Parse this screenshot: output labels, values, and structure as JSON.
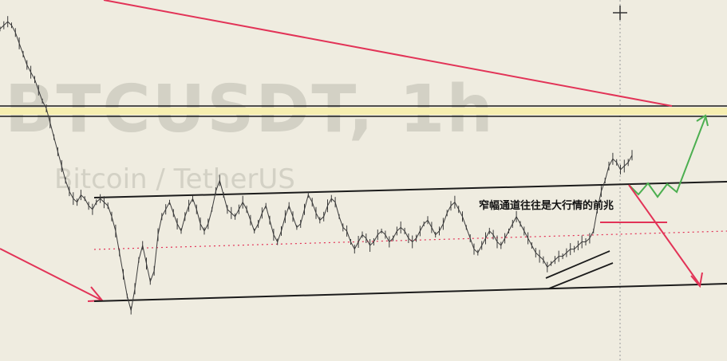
{
  "chart_data": {
    "type": "line",
    "title": "",
    "xlabel": "",
    "ylabel": "",
    "grid": false,
    "watermark": {
      "symbol": "BTCUSDT, 1h",
      "description": "Bitcoin / TetherUS"
    },
    "annotations": [
      {
        "text": "窄幅通道往往是大行情的前兆"
      }
    ],
    "series": [
      {
        "values": [
          92,
          93,
          94,
          93,
          91,
          88,
          85,
          82,
          80,
          78,
          75,
          72,
          70,
          66,
          62,
          58,
          54,
          50,
          47,
          45,
          44,
          46,
          45,
          43,
          42,
          44,
          45,
          44,
          43,
          40,
          36,
          30,
          24,
          18,
          14,
          20,
          28,
          32,
          27,
          22,
          25,
          35,
          40,
          42,
          44,
          41,
          38,
          36,
          40,
          43,
          45,
          42,
          38,
          36,
          38,
          42,
          47,
          50,
          46,
          42,
          41,
          40,
          42,
          44,
          42,
          39,
          36,
          38,
          41,
          43,
          39,
          35,
          33,
          36,
          40,
          43,
          40,
          37,
          38,
          42,
          46,
          44,
          41,
          39,
          40,
          43,
          45,
          44,
          40,
          37,
          36,
          33,
          31,
          33,
          35,
          34,
          32,
          33,
          35,
          36,
          35,
          33,
          34,
          36,
          37,
          36,
          34,
          33,
          34,
          36,
          38,
          39,
          37,
          35,
          36,
          38,
          41,
          43,
          44,
          42,
          40,
          37,
          34,
          31,
          30,
          32,
          34,
          36,
          35,
          33,
          32,
          34,
          36,
          38,
          40,
          38,
          36,
          34,
          32,
          30,
          29,
          28,
          26,
          27,
          28,
          29,
          29,
          30,
          31,
          31,
          32,
          33,
          33,
          34,
          36,
          42,
          47,
          50,
          54,
          56,
          55,
          53,
          54,
          55,
          57
        ]
      }
    ],
    "ylim": [
      0,
      100
    ],
    "colors": {
      "price": "#3a3a3a",
      "channel": "#1b1b1b",
      "trend": "#e23357",
      "resistance": "#c9a400",
      "bullish": "#4caf50",
      "dotted": "#e23357",
      "crosshair": "#333333",
      "background": "#efece0"
    }
  }
}
